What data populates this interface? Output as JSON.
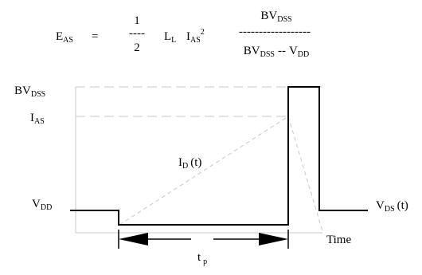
{
  "formula": {
    "lhs_main": "E",
    "lhs_sub": "AS",
    "equals": "=",
    "half_num": "1",
    "half_bar": "----",
    "half_den": "2",
    "l_main": "L",
    "l_sub": "L",
    "i_main": "I",
    "i_sub": "AS",
    "i_exp": "2",
    "ratio_num_main": "BV",
    "ratio_num_sub": "DSS",
    "ratio_bar": "------------------",
    "ratio_den_main": "BV",
    "ratio_den_sub": "DSS",
    "ratio_den_minus": "--",
    "ratio_den_v": "V",
    "ratio_den_v_sub": "DD"
  },
  "labels": {
    "bvdss_main": "BV",
    "bvdss_sub": "DSS",
    "ias_main": "I",
    "ias_sub": "AS",
    "id_main": "I",
    "id_sub": "D",
    "id_suffix": "(t)",
    "vdd_main": "V",
    "vdd_sub": "DD",
    "vds_main": "V",
    "vds_sub": "DS",
    "vds_suffix": "(t)",
    "time": "Time",
    "tp_main": "t",
    "tp_sub": "p"
  },
  "colors": {
    "line": "#000000",
    "dashed": "#c8c8c8"
  }
}
